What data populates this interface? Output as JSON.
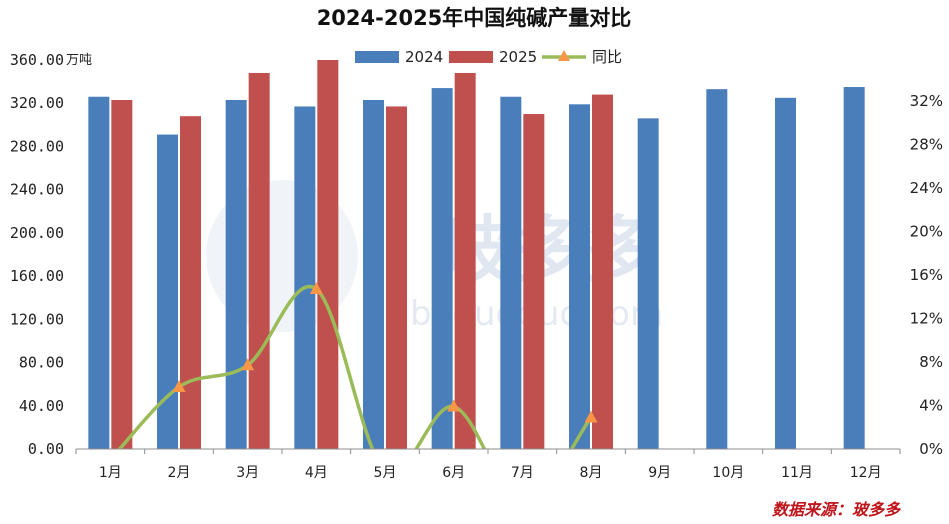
{
  "chart_data": {
    "type": "bar",
    "title": "2024-2025年中国纯碱产量对比",
    "y_unit": "万吨",
    "categories": [
      "1月",
      "2月",
      "3月",
      "4月",
      "5月",
      "6月",
      "7月",
      "8月",
      "9月",
      "10月",
      "11月",
      "12月"
    ],
    "ylim": [
      0,
      360
    ],
    "yticks": [
      "0.00",
      "40.00",
      "80.00",
      "120.00",
      "160.00",
      "200.00",
      "240.00",
      "280.00",
      "320.00",
      "360.00"
    ],
    "y2lim": [
      0,
      34
    ],
    "y2ticks": [
      "0%",
      "4%",
      "8%",
      "12%",
      "16%",
      "20%",
      "24%",
      "28%",
      "32%"
    ],
    "series": [
      {
        "name": "2024",
        "kind": "bar",
        "color": "#4a7ebb",
        "values": [
          326,
          291,
          323,
          317,
          323,
          334,
          326,
          319,
          306,
          333,
          325,
          335
        ]
      },
      {
        "name": "2025",
        "kind": "bar",
        "color": "#c0504d",
        "values": [
          323,
          308,
          348,
          360,
          317,
          348,
          310,
          328,
          null,
          null,
          null,
          null
        ]
      },
      {
        "name": "同比",
        "kind": "line",
        "axis": "right",
        "color": "#9bbb59",
        "marker_color": "#f79646",
        "values": [
          -1,
          5.7,
          7.7,
          14.7,
          -2,
          3.9,
          -5,
          2.9,
          null,
          null,
          null,
          null
        ]
      }
    ],
    "legend_position": "top",
    "grid": false
  },
  "source": "数据来源：玻多多",
  "watermark": {
    "name": "玻多多",
    "url": "boduoduo.com"
  }
}
